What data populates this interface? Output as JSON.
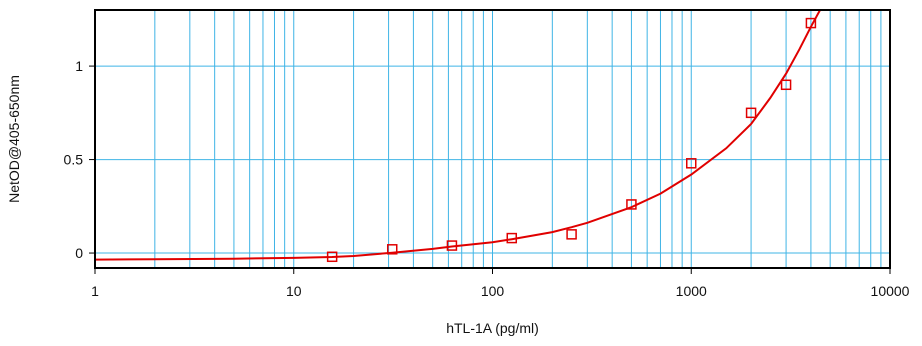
{
  "chart_data": {
    "type": "scatter",
    "xscale": "log",
    "xlabel": "hTL-1A (pg/ml)",
    "ylabel": "NetOD@405-650nm",
    "xlim": [
      1,
      10000
    ],
    "ylim": [
      -0.08,
      1.3
    ],
    "x_ticks": [
      {
        "value": 1,
        "label": "1"
      },
      {
        "value": 10,
        "label": "10"
      },
      {
        "value": 100,
        "label": "100"
      },
      {
        "value": 1000,
        "label": "1000"
      },
      {
        "value": 10000,
        "label": "10000"
      }
    ],
    "y_ticks": [
      {
        "value": 0,
        "label": "0"
      },
      {
        "value": 0.5,
        "label": "0.5"
      },
      {
        "value": 1,
        "label": "1"
      }
    ],
    "grid": true,
    "legend": "none",
    "series": [
      {
        "kind": "points",
        "marker": "open-square",
        "x": [
          15.6,
          31.3,
          62.5,
          125,
          250,
          500,
          1000,
          2000,
          3000,
          4000
        ],
        "y": [
          -0.02,
          0.02,
          0.04,
          0.08,
          0.1,
          0.26,
          0.48,
          0.75,
          0.9,
          1.23
        ]
      },
      {
        "kind": "fitted-curve",
        "x": [
          1,
          2,
          5,
          10,
          15.6,
          20,
          31.3,
          50,
          62.5,
          100,
          125,
          200,
          250,
          300,
          500,
          700,
          1000,
          1500,
          2000,
          2500,
          3000,
          3500,
          4000,
          4500
        ],
        "y": [
          -0.035,
          -0.033,
          -0.03,
          -0.026,
          -0.021,
          -0.016,
          0.002,
          0.022,
          0.035,
          0.058,
          0.074,
          0.112,
          0.138,
          0.162,
          0.245,
          0.318,
          0.42,
          0.56,
          0.69,
          0.83,
          0.96,
          1.09,
          1.21,
          1.31
        ]
      }
    ],
    "colors": {
      "grid": "#3fb4e6",
      "series": "#e00000",
      "axes": "#000000"
    }
  }
}
